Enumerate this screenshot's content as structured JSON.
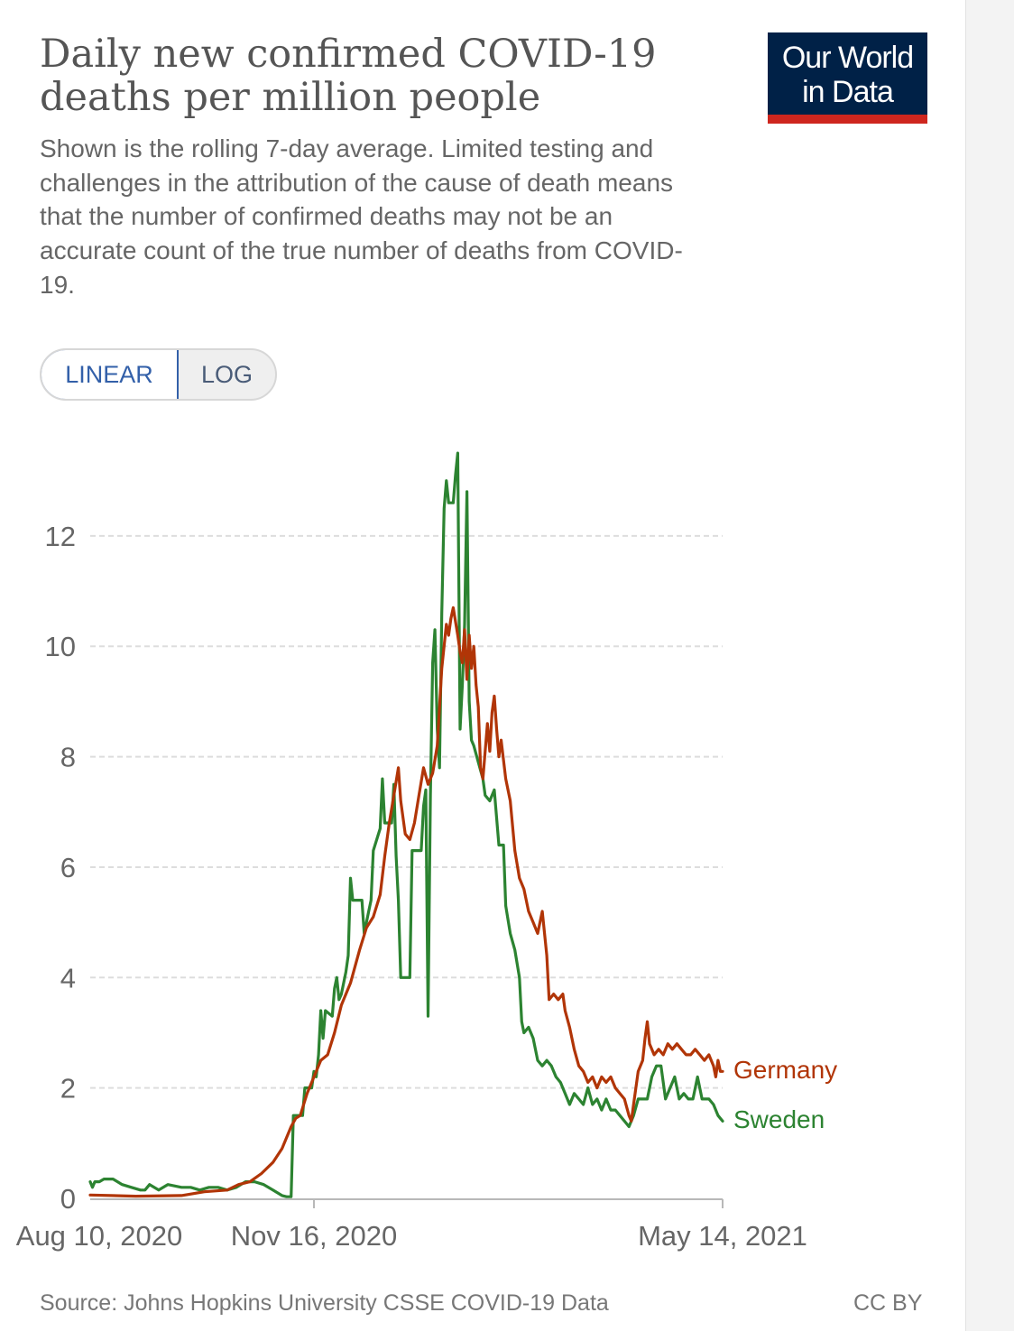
{
  "header": {
    "title": "Daily new confirmed COVID-19 deaths per million people",
    "subtitle": "Shown is the rolling 7-day average. Limited testing and challenges in the attribution of the cause of death means that the number of confirmed deaths may not be an accurate count of the true number of deaths from COVID-19.",
    "logo_line1": "Our World",
    "logo_line2": "in Data"
  },
  "scale_toggle": {
    "linear_label": "LINEAR",
    "log_label": "LOG",
    "selected": "LINEAR"
  },
  "footer": {
    "source": "Source: Johns Hopkins University CSSE COVID-19 Data",
    "license": "CC BY"
  },
  "colors": {
    "germany": "#b13507",
    "sweden": "#2c8331",
    "grid": "#dddddd",
    "tick_text": "#666666"
  },
  "chart_data": {
    "type": "line",
    "title": "Daily new confirmed COVID-19 deaths per million people",
    "xlabel": "",
    "ylabel": "",
    "x_range_days": [
      0,
      277
    ],
    "ylim": [
      0,
      13.6
    ],
    "yticks": [
      0,
      2,
      4,
      6,
      8,
      10,
      12
    ],
    "xticks": [
      {
        "day": 0,
        "label": "Aug 10, 2020"
      },
      {
        "day": 98,
        "label": "Nov 16, 2020"
      },
      {
        "day": 277,
        "label": "May 14, 2021"
      }
    ],
    "grid": "horizontal-dashed",
    "series": [
      {
        "name": "Germany",
        "points": [
          [
            0,
            0.06
          ],
          [
            20,
            0.04
          ],
          [
            40,
            0.05
          ],
          [
            50,
            0.12
          ],
          [
            60,
            0.15
          ],
          [
            65,
            0.25
          ],
          [
            70,
            0.3
          ],
          [
            75,
            0.45
          ],
          [
            80,
            0.65
          ],
          [
            84,
            0.9
          ],
          [
            88,
            1.3
          ],
          [
            90,
            1.45
          ],
          [
            92,
            1.5
          ],
          [
            95,
            1.9
          ],
          [
            98,
            2.2
          ],
          [
            101,
            2.5
          ],
          [
            104,
            2.6
          ],
          [
            107,
            3.0
          ],
          [
            110,
            3.5
          ],
          [
            114,
            3.9
          ],
          [
            118,
            4.5
          ],
          [
            121,
            4.9
          ],
          [
            124,
            5.1
          ],
          [
            127,
            5.5
          ],
          [
            129,
            6.2
          ],
          [
            131,
            6.8
          ],
          [
            133,
            7.3
          ],
          [
            135,
            7.8
          ],
          [
            136,
            7.2
          ],
          [
            138,
            6.6
          ],
          [
            140,
            6.5
          ],
          [
            142,
            6.8
          ],
          [
            144,
            7.3
          ],
          [
            146,
            7.8
          ],
          [
            148,
            7.5
          ],
          [
            150,
            7.7
          ],
          [
            152,
            8.2
          ],
          [
            154,
            9.6
          ],
          [
            156,
            10.4
          ],
          [
            157,
            10.2
          ],
          [
            158,
            10.5
          ],
          [
            159,
            10.7
          ],
          [
            161,
            10.2
          ],
          [
            162,
            9.9
          ],
          [
            163,
            9.7
          ],
          [
            164,
            10.3
          ],
          [
            165,
            9.4
          ],
          [
            166,
            10.2
          ],
          [
            167,
            9.6
          ],
          [
            168,
            10.0
          ],
          [
            169,
            9.3
          ],
          [
            170,
            8.9
          ],
          [
            171,
            7.8
          ],
          [
            172,
            7.6
          ],
          [
            174,
            8.6
          ],
          [
            175,
            8.1
          ],
          [
            176,
            8.8
          ],
          [
            177,
            9.1
          ],
          [
            178,
            8.5
          ],
          [
            179,
            8.0
          ],
          [
            180,
            8.3
          ],
          [
            182,
            7.6
          ],
          [
            184,
            7.2
          ],
          [
            186,
            6.3
          ],
          [
            188,
            5.8
          ],
          [
            190,
            5.6
          ],
          [
            192,
            5.2
          ],
          [
            194,
            5.0
          ],
          [
            196,
            4.8
          ],
          [
            198,
            5.2
          ],
          [
            199,
            4.8
          ],
          [
            200,
            4.4
          ],
          [
            201,
            3.6
          ],
          [
            203,
            3.7
          ],
          [
            205,
            3.6
          ],
          [
            207,
            3.7
          ],
          [
            208,
            3.4
          ],
          [
            210,
            3.1
          ],
          [
            212,
            2.7
          ],
          [
            214,
            2.4
          ],
          [
            216,
            2.3
          ],
          [
            218,
            2.1
          ],
          [
            220,
            2.2
          ],
          [
            222,
            2.0
          ],
          [
            224,
            2.2
          ],
          [
            226,
            2.1
          ],
          [
            228,
            2.2
          ],
          [
            230,
            2.0
          ],
          [
            232,
            1.9
          ],
          [
            234,
            1.8
          ],
          [
            236,
            1.5
          ],
          [
            237,
            1.4
          ],
          [
            238,
            1.7
          ],
          [
            240,
            2.3
          ],
          [
            242,
            2.5
          ],
          [
            243,
            2.9
          ],
          [
            244,
            3.2
          ],
          [
            245,
            2.8
          ],
          [
            247,
            2.6
          ],
          [
            249,
            2.7
          ],
          [
            251,
            2.6
          ],
          [
            253,
            2.8
          ],
          [
            255,
            2.7
          ],
          [
            257,
            2.8
          ],
          [
            259,
            2.7
          ],
          [
            261,
            2.6
          ],
          [
            263,
            2.6
          ],
          [
            265,
            2.7
          ],
          [
            267,
            2.6
          ],
          [
            269,
            2.5
          ],
          [
            271,
            2.6
          ],
          [
            273,
            2.4
          ],
          [
            274,
            2.2
          ],
          [
            275,
            2.5
          ],
          [
            276,
            2.3
          ],
          [
            277,
            2.3
          ]
        ]
      },
      {
        "name": "Sweden",
        "points": [
          [
            0,
            0.3
          ],
          [
            1,
            0.2
          ],
          [
            2,
            0.3
          ],
          [
            4,
            0.3
          ],
          [
            6,
            0.35
          ],
          [
            10,
            0.35
          ],
          [
            14,
            0.25
          ],
          [
            18,
            0.2
          ],
          [
            22,
            0.15
          ],
          [
            24,
            0.15
          ],
          [
            26,
            0.25
          ],
          [
            30,
            0.15
          ],
          [
            34,
            0.25
          ],
          [
            40,
            0.2
          ],
          [
            44,
            0.2
          ],
          [
            48,
            0.15
          ],
          [
            52,
            0.2
          ],
          [
            56,
            0.2
          ],
          [
            60,
            0.15
          ],
          [
            64,
            0.2
          ],
          [
            68,
            0.3
          ],
          [
            72,
            0.3
          ],
          [
            76,
            0.25
          ],
          [
            80,
            0.15
          ],
          [
            84,
            0.05
          ],
          [
            86,
            0.03
          ],
          [
            88,
            0.03
          ],
          [
            89,
            1.5
          ],
          [
            93,
            1.5
          ],
          [
            94,
            2.0
          ],
          [
            97,
            2.0
          ],
          [
            98,
            2.3
          ],
          [
            99,
            2.2
          ],
          [
            100,
            2.6
          ],
          [
            101,
            3.4
          ],
          [
            102,
            2.9
          ],
          [
            103,
            3.4
          ],
          [
            106,
            3.3
          ],
          [
            107,
            3.8
          ],
          [
            108,
            4.0
          ],
          [
            109,
            3.6
          ],
          [
            110,
            3.7
          ],
          [
            112,
            4.1
          ],
          [
            113,
            4.4
          ],
          [
            114,
            5.8
          ],
          [
            115,
            5.4
          ],
          [
            119,
            5.4
          ],
          [
            120,
            4.8
          ],
          [
            122,
            5.2
          ],
          [
            123,
            5.4
          ],
          [
            124,
            6.3
          ],
          [
            127,
            6.7
          ],
          [
            128,
            7.6
          ],
          [
            129,
            6.8
          ],
          [
            132,
            6.8
          ],
          [
            133,
            7.5
          ],
          [
            134,
            6.2
          ],
          [
            135,
            5.4
          ],
          [
            136,
            4.0
          ],
          [
            140,
            4.0
          ],
          [
            141,
            6.3
          ],
          [
            145,
            6.3
          ],
          [
            146,
            7.1
          ],
          [
            147,
            7.4
          ],
          [
            148,
            3.3
          ],
          [
            149,
            7.3
          ],
          [
            150,
            9.7
          ],
          [
            151,
            10.3
          ],
          [
            152,
            8.5
          ],
          [
            153,
            7.8
          ],
          [
            154,
            10.6
          ],
          [
            155,
            12.5
          ],
          [
            156,
            13.0
          ],
          [
            157,
            12.6
          ],
          [
            159,
            12.6
          ],
          [
            160,
            13.1
          ],
          [
            161,
            13.5
          ],
          [
            162,
            8.5
          ],
          [
            163,
            9.3
          ],
          [
            164,
            10.4
          ],
          [
            165,
            12.8
          ],
          [
            166,
            9.0
          ],
          [
            167,
            8.3
          ],
          [
            168,
            8.2
          ],
          [
            170,
            7.9
          ],
          [
            172,
            7.6
          ],
          [
            173,
            7.3
          ],
          [
            175,
            7.2
          ],
          [
            177,
            7.4
          ],
          [
            179,
            6.4
          ],
          [
            181,
            6.4
          ],
          [
            182,
            5.3
          ],
          [
            184,
            4.8
          ],
          [
            186,
            4.5
          ],
          [
            188,
            4.0
          ],
          [
            189,
            3.2
          ],
          [
            190,
            3.0
          ],
          [
            192,
            3.1
          ],
          [
            194,
            2.9
          ],
          [
            196,
            2.5
          ],
          [
            198,
            2.4
          ],
          [
            200,
            2.5
          ],
          [
            202,
            2.4
          ],
          [
            204,
            2.2
          ],
          [
            206,
            2.1
          ],
          [
            208,
            1.9
          ],
          [
            210,
            1.7
          ],
          [
            212,
            1.9
          ],
          [
            214,
            1.8
          ],
          [
            216,
            1.7
          ],
          [
            218,
            2.0
          ],
          [
            220,
            1.7
          ],
          [
            222,
            1.8
          ],
          [
            224,
            1.6
          ],
          [
            226,
            1.8
          ],
          [
            228,
            1.6
          ],
          [
            230,
            1.6
          ],
          [
            232,
            1.5
          ],
          [
            234,
            1.4
          ],
          [
            236,
            1.3
          ],
          [
            238,
            1.5
          ],
          [
            240,
            1.8
          ],
          [
            244,
            1.8
          ],
          [
            246,
            2.2
          ],
          [
            248,
            2.4
          ],
          [
            250,
            2.4
          ],
          [
            252,
            1.8
          ],
          [
            254,
            2.0
          ],
          [
            256,
            2.2
          ],
          [
            258,
            1.8
          ],
          [
            260,
            1.9
          ],
          [
            262,
            1.8
          ],
          [
            264,
            1.8
          ],
          [
            266,
            2.2
          ],
          [
            268,
            1.8
          ],
          [
            271,
            1.8
          ],
          [
            273,
            1.7
          ],
          [
            275,
            1.5
          ],
          [
            277,
            1.4
          ]
        ]
      }
    ]
  }
}
